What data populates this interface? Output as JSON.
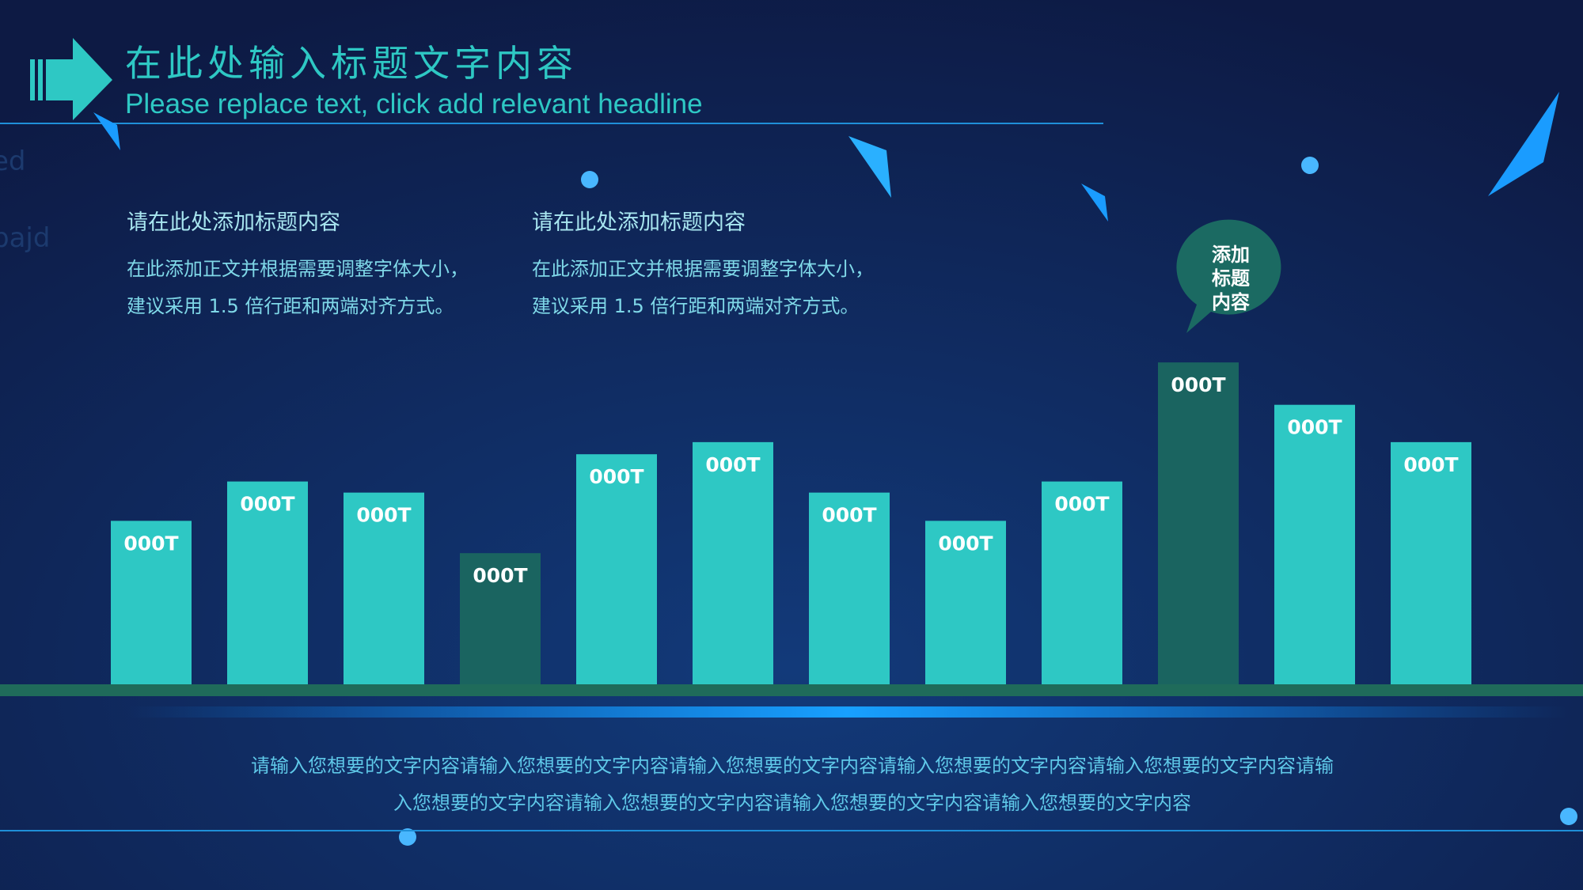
{
  "header": {
    "title": "在此处输入标题文字内容",
    "subtitle": "Please replace text, click add relevant headline"
  },
  "blocks": [
    {
      "heading": "请在此处添加标题内容",
      "lines": [
        "在此添加正文并根据需要调整字体大小，",
        "建议采用 1.5 倍行距和两端对齐方式。"
      ]
    },
    {
      "heading": "请在此处添加标题内容",
      "lines": [
        "在此添加正文并根据需要调整字体大小，",
        "建议采用 1.5 倍行距和两端对齐方式。"
      ]
    }
  ],
  "bubble": {
    "lines": [
      "添加",
      "标题",
      "内容"
    ]
  },
  "background_texts": [
    "ed",
    "pajd"
  ],
  "chart_data": {
    "type": "bar",
    "categories": [
      null,
      null,
      null,
      null,
      null,
      null,
      null,
      null,
      null,
      null,
      null,
      null
    ],
    "values": [
      162,
      201,
      190,
      130,
      228,
      240,
      190,
      162,
      201,
      319,
      277,
      240
    ],
    "value_labels": [
      "000T",
      "000T",
      "000T",
      "000T",
      "000T",
      "000T",
      "000T",
      "000T",
      "000T",
      "000T",
      "000T",
      "000T"
    ],
    "colors": [
      "#2ec8c4",
      "#2ec8c4",
      "#2ec8c4",
      "#1a6460",
      "#2ec8c4",
      "#2ec8c4",
      "#2ec8c4",
      "#2ec8c4",
      "#2ec8c4",
      "#1a6460",
      "#2ec8c4",
      "#2ec8c4"
    ]
  },
  "footer": {
    "lines": [
      "请输入您想要的文字内容请输入您想要的文字内容请输入您想要的文字内容请输入您想要的文字内容请输入您想要的文字内容请输",
      "入您想要的文字内容请输入您想要的文字内容请输入您想要的文字内容请输入您想要的文字内容"
    ]
  }
}
